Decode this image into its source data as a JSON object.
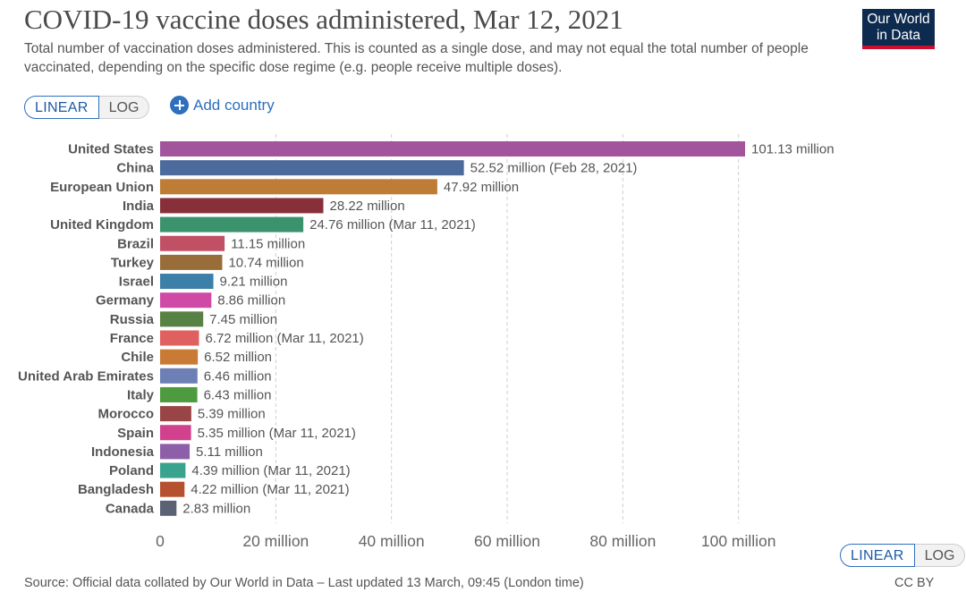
{
  "header": {
    "title": "COVID-19 vaccine doses administered, Mar 12, 2021",
    "subtitle": "Total number of vaccination doses administered. This is counted as a single dose, and may not equal the total number of people vaccinated, depending on the specific dose regime (e.g. people receive multiple doses).",
    "logo_line1": "Our World",
    "logo_line2": "in Data"
  },
  "controls": {
    "scale_linear": "LINEAR",
    "scale_log": "LOG",
    "add_country": "Add country",
    "selected_scale": "LINEAR"
  },
  "footer": {
    "source": "Source: Official data collated by Our World in Data – Last updated 13 March, 09:45 (London time)",
    "license": "CC BY"
  },
  "chart_data": {
    "type": "bar",
    "orientation": "horizontal",
    "categories": [
      "United States",
      "China",
      "European Union",
      "India",
      "United Kingdom",
      "Brazil",
      "Turkey",
      "Israel",
      "Germany",
      "Russia",
      "France",
      "Chile",
      "United Arab Emirates",
      "Italy",
      "Morocco",
      "Spain",
      "Indonesia",
      "Poland",
      "Bangladesh",
      "Canada"
    ],
    "values": [
      101.13,
      52.52,
      47.92,
      28.22,
      24.76,
      11.15,
      10.74,
      9.21,
      8.86,
      7.45,
      6.72,
      6.52,
      6.46,
      6.43,
      5.39,
      5.35,
      5.11,
      4.39,
      4.22,
      2.83
    ],
    "value_labels": [
      "101.13 million",
      "52.52 million (Feb 28, 2021)",
      "47.92 million",
      "28.22 million",
      "24.76 million (Mar 11, 2021)",
      "11.15 million",
      "10.74 million",
      "9.21 million",
      "8.86 million",
      "7.45 million",
      "6.72 million (Mar 11, 2021)",
      "6.52 million",
      "6.46 million",
      "6.43 million",
      "5.39 million",
      "5.35 million (Mar 11, 2021)",
      "5.11 million",
      "4.39 million (Mar 11, 2021)",
      "4.22 million (Mar 11, 2021)",
      "2.83 million"
    ],
    "colors": [
      "#a2559c",
      "#4c6a9c",
      "#be7c36",
      "#883039",
      "#3a936c",
      "#c15065",
      "#996d39",
      "#3c7fa8",
      "#cf4aa6",
      "#578145",
      "#e05f5f",
      "#c97a35",
      "#6d7fb4",
      "#4e9a3f",
      "#9a4545",
      "#d1418e",
      "#8c5fa8",
      "#3aa38f",
      "#b5512e",
      "#5a6374"
    ],
    "x_ticks": [
      0,
      20,
      40,
      60,
      80,
      100
    ],
    "x_tick_labels": [
      "0",
      "20 million",
      "40 million",
      "60 million",
      "80 million",
      "100 million"
    ],
    "xlim": [
      0,
      101.13
    ],
    "unit": "million",
    "grid": "vertical dashed"
  }
}
